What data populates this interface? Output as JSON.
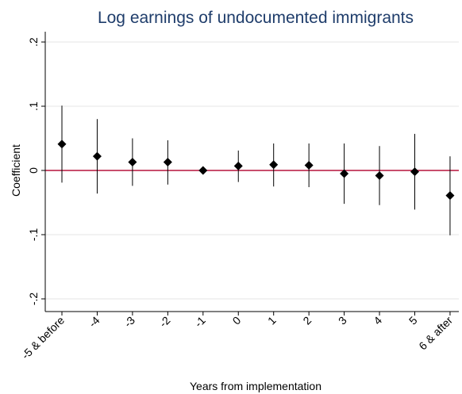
{
  "chart_data": {
    "type": "scatter",
    "title": "Log earnings of undocumented immigrants",
    "xlabel": "Years from implementation",
    "ylabel": "Coefficient",
    "ylim": [
      -0.2,
      0.2
    ],
    "yticks": [
      -0.2,
      -0.1,
      0,
      0.1,
      0.2
    ],
    "ytick_labels": [
      "-.2",
      "-.1",
      "0",
      ".1",
      ".2"
    ],
    "categories": [
      "-5 & before",
      "-4",
      "-3",
      "-2",
      "-1",
      "0",
      "1",
      "2",
      "3",
      "4",
      "5",
      "6 & after"
    ],
    "series": [
      {
        "values": [
          0.041,
          0.022,
          0.013,
          0.013,
          0.0,
          0.007,
          0.009,
          0.008,
          -0.005,
          -0.008,
          -0.002,
          -0.039
        ],
        "lower": [
          -0.019,
          -0.036,
          -0.024,
          -0.022,
          0.0,
          -0.018,
          -0.025,
          -0.026,
          -0.052,
          -0.054,
          -0.061,
          -0.101
        ],
        "upper": [
          0.101,
          0.08,
          0.05,
          0.047,
          0.0,
          0.031,
          0.042,
          0.042,
          0.042,
          0.038,
          0.057,
          0.022
        ]
      }
    ],
    "reference_line": 0,
    "reference_line_color": "#b5143c",
    "marker_color": "#000000",
    "title_color": "#1f3d6b",
    "grid": true
  }
}
